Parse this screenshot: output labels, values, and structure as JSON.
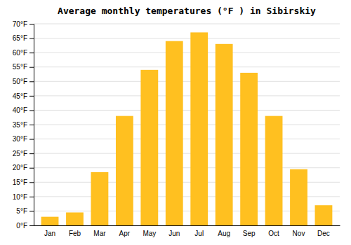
{
  "chart_data": {
    "type": "bar",
    "title": "Average monthly temperatures (°F ) in Sibirskiy",
    "categories": [
      "Jan",
      "Feb",
      "Mar",
      "Apr",
      "May",
      "Jun",
      "Jul",
      "Aug",
      "Sep",
      "Oct",
      "Nov",
      "Dec"
    ],
    "values": [
      3.0,
      4.5,
      18.5,
      38.0,
      54.0,
      64.0,
      67.0,
      63.0,
      53.0,
      38.0,
      19.5,
      7.0
    ],
    "color": "#FFC020",
    "ylim": [
      0,
      70
    ],
    "yticks": [
      {
        "value": 0,
        "label": "0°F"
      },
      {
        "value": 5,
        "label": "5°F"
      },
      {
        "value": 10,
        "label": "10°F"
      },
      {
        "value": 15,
        "label": "15°F"
      },
      {
        "value": 20,
        "label": "20°F"
      },
      {
        "value": 25,
        "label": "25°F"
      },
      {
        "value": 30,
        "label": "30°F"
      },
      {
        "value": 35,
        "label": "35°F"
      },
      {
        "value": 40,
        "label": "40°F"
      },
      {
        "value": 45,
        "label": "45°F"
      },
      {
        "value": 50,
        "label": "50°F"
      },
      {
        "value": 55,
        "label": "55°F"
      },
      {
        "value": 60,
        "label": "60°F"
      },
      {
        "value": 65,
        "label": "65°F"
      },
      {
        "value": 70,
        "label": "70°F"
      }
    ],
    "grid": true
  }
}
